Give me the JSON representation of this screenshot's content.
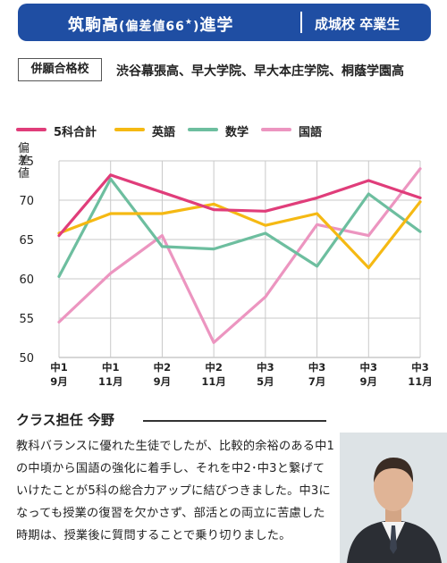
{
  "header": {
    "school": "筑駒高",
    "score_note": "(偏差値66",
    "score_mark": "★",
    "score_close": ")",
    "suffix": "進学",
    "from": "成城校 卒業生"
  },
  "heigan": {
    "label": "併願合格校",
    "schools": "渋谷幕張高、早大学院、早大本庄学院、桐蔭学園高"
  },
  "chart_data": {
    "type": "line",
    "ylabel": "偏差値",
    "ylim": [
      50,
      75
    ],
    "yticks": [
      50,
      55,
      60,
      65,
      70,
      75
    ],
    "categories": [
      [
        "中1",
        "9月"
      ],
      [
        "中1",
        "11月"
      ],
      [
        "中2",
        "9月"
      ],
      [
        "中2",
        "11月"
      ],
      [
        "中3",
        "5月"
      ],
      [
        "中3",
        "7月"
      ],
      [
        "中3",
        "9月"
      ],
      [
        "中3",
        "11月"
      ]
    ],
    "series": [
      {
        "name": "5科合計",
        "color": "#e03d7a",
        "values": [
          65.5,
          73.2,
          71.0,
          68.8,
          68.6,
          70.3,
          72.5,
          70.3
        ]
      },
      {
        "name": "英語",
        "color": "#f5b913",
        "values": [
          65.8,
          68.3,
          68.3,
          69.5,
          66.8,
          68.3,
          61.4,
          69.8
        ]
      },
      {
        "name": "数学",
        "color": "#6dbe9f",
        "values": [
          60.3,
          72.7,
          64.1,
          63.8,
          65.8,
          61.6,
          70.8,
          66.0
        ]
      },
      {
        "name": "国語",
        "color": "#ec95c0",
        "values": [
          54.5,
          60.7,
          65.5,
          51.9,
          57.7,
          66.9,
          65.5,
          74.0
        ]
      }
    ],
    "grid": true,
    "legend_position": "top"
  },
  "comment": {
    "title": "クラス担任 今野",
    "body": "教科バランスに優れた生徒でしたが、比較的余裕のある中1の中頃から国語の強化に着手し、それを中2･中3と繋げていけたことが5科の総合力アップに結びつきました。中3になっても授業の復習を欠かさず、部活との両立に苦慮した時期は、授業後に質問することで乗り切りました。"
  },
  "photo": {
    "description": "teacher portrait photo",
    "bg": "#dde3e6",
    "suit": "#2b2e34",
    "skin": "#e0b496",
    "hair": "#3a2c24"
  }
}
